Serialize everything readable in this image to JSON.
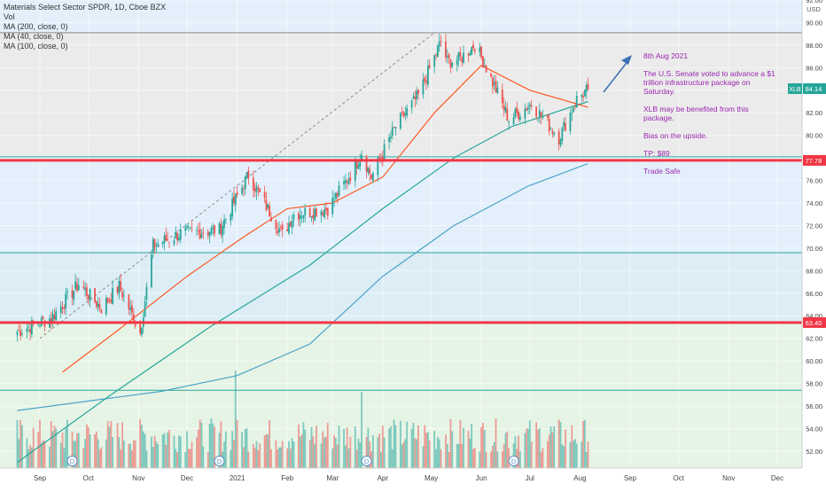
{
  "header": {
    "symbol_line": "Materials Select Sector SPDR, 1D, Cboe BZX",
    "vol_label": "Vol",
    "ma_labels": [
      "MA (200, close, 0)",
      "MA (40, close, 0)",
      "MA (100, close, 0)"
    ]
  },
  "annotation": {
    "date": "8th Aug 2021",
    "paragraph1": "The U.S. Senate voted to advance a $1 trillion infrastructure package on Saturday.",
    "paragraph2": "XLB may be benefited from this package.",
    "paragraph3": "Bias on the upside.",
    "target": "TP: $89",
    "closing": "Trade Safe"
  },
  "colors": {
    "up": "#26a69a",
    "down": "#ef5350",
    "ma_fast": "#ff5722",
    "ma_slow": "#26a69a",
    "support": "#f23645",
    "zone_line": "#26a69a",
    "annotation_text": "#9c27b0",
    "arrow": "#3d6fb5",
    "band_blue": "#e3f0fb",
    "band_grey": "#ebebeb",
    "band_green": "#e6f4e6"
  },
  "chart_data": {
    "type": "candlestick",
    "ticker": "XLB",
    "currency": "USD",
    "last_price": "84.14",
    "ylim": [
      50.5,
      92
    ],
    "y_ticks": [
      "92.00",
      "90.00",
      "88.00",
      "86.00",
      "84.00",
      "82.00",
      "80.00",
      "78.00",
      "76.00",
      "74.00",
      "72.00",
      "70.00",
      "68.00",
      "66.00",
      "64.00",
      "62.00",
      "60.00",
      "58.00",
      "56.00",
      "54.00",
      "52.00"
    ],
    "x_labels": [
      "Sep",
      "Oct",
      "Nov",
      "Dec",
      "2021",
      "Feb",
      "Mar",
      "Apr",
      "May",
      "Jun",
      "Jul",
      "Aug",
      "Sep",
      "Oct",
      "Nov",
      "Dec"
    ],
    "support_levels": [
      "77.78",
      "63.40"
    ],
    "zone_lines": [
      89.1,
      78.1,
      69.6,
      57.4
    ],
    "dividend_markers": [
      "D",
      "D",
      "D",
      "D"
    ],
    "price_path": [
      {
        "date": "2020-08-18",
        "close": 62.6
      },
      {
        "date": "2020-09-08",
        "close": 63.8
      },
      {
        "date": "2020-09-25",
        "close": 66.8
      },
      {
        "date": "2020-10-09",
        "close": 64.7
      },
      {
        "date": "2020-10-20",
        "close": 66.6
      },
      {
        "date": "2020-11-02",
        "close": 62.5
      },
      {
        "date": "2020-11-10",
        "close": 70.2
      },
      {
        "date": "2020-11-27",
        "close": 71.3
      },
      {
        "date": "2020-12-21",
        "close": 71.6
      },
      {
        "date": "2021-01-08",
        "close": 76.5
      },
      {
        "date": "2021-01-29",
        "close": 71.2
      },
      {
        "date": "2021-02-05",
        "close": 73.0
      },
      {
        "date": "2021-02-26",
        "close": 73.5
      },
      {
        "date": "2021-03-12",
        "close": 76.5
      },
      {
        "date": "2021-03-19",
        "close": 78.5
      },
      {
        "date": "2021-03-25",
        "close": 76.3
      },
      {
        "date": "2021-04-09",
        "close": 80.8
      },
      {
        "date": "2021-04-23",
        "close": 83.5
      },
      {
        "date": "2021-05-07",
        "close": 88.3
      },
      {
        "date": "2021-05-11",
        "close": 86.5
      },
      {
        "date": "2021-05-19",
        "close": 86.8
      },
      {
        "date": "2021-05-28",
        "close": 88.1
      },
      {
        "date": "2021-06-04",
        "close": 86.0
      },
      {
        "date": "2021-06-18",
        "close": 81.4
      },
      {
        "date": "2021-07-02",
        "close": 82.8
      },
      {
        "date": "2021-07-19",
        "close": 79.8
      },
      {
        "date": "2021-07-30",
        "close": 83.2
      },
      {
        "date": "2021-08-06",
        "close": 84.1
      }
    ],
    "ma_40": [
      {
        "date": "2020-09-15",
        "value": 59.0
      },
      {
        "date": "2020-10-20",
        "value": 62.8
      },
      {
        "date": "2020-12-01",
        "value": 67.5
      },
      {
        "date": "2021-01-05",
        "value": 71.0
      },
      {
        "date": "2021-02-01",
        "value": 73.5
      },
      {
        "date": "2021-03-01",
        "value": 74.0
      },
      {
        "date": "2021-04-01",
        "value": 76.3
      },
      {
        "date": "2021-05-03",
        "value": 82.0
      },
      {
        "date": "2021-06-01",
        "value": 86.2
      },
      {
        "date": "2021-07-01",
        "value": 84.0
      },
      {
        "date": "2021-08-06",
        "value": 82.5
      }
    ],
    "ma_100": [
      {
        "date": "2020-08-18",
        "value": 51.0
      },
      {
        "date": "2020-10-15",
        "value": 57.0
      },
      {
        "date": "2020-12-15",
        "value": 63.0
      },
      {
        "date": "2021-02-15",
        "value": 68.5
      },
      {
        "date": "2021-04-01",
        "value": 73.5
      },
      {
        "date": "2021-05-15",
        "value": 78.0
      },
      {
        "date": "2021-06-20",
        "value": 80.8
      },
      {
        "date": "2021-08-06",
        "value": 83.0
      }
    ],
    "ma_200": [
      {
        "date": "2020-08-18",
        "value": 55.6
      },
      {
        "date": "2020-11-15",
        "value": 57.3
      },
      {
        "date": "2021-01-01",
        "value": 58.7
      },
      {
        "date": "2021-02-15",
        "value": 61.5
      },
      {
        "date": "2021-04-01",
        "value": 67.5
      },
      {
        "date": "2021-05-15",
        "value": 72.0
      },
      {
        "date": "2021-06-30",
        "value": 75.5
      },
      {
        "date": "2021-08-06",
        "value": 77.5
      }
    ],
    "trendline": {
      "from": {
        "date": "2020-09-01",
        "value": 62.0
      },
      "to": {
        "date": "2021-05-03",
        "value": 89.1
      }
    },
    "volume_spikes": [
      {
        "date": "2020-12-31",
        "volume": 1.0
      },
      {
        "date": "2021-03-19",
        "volume": 0.78
      }
    ]
  }
}
